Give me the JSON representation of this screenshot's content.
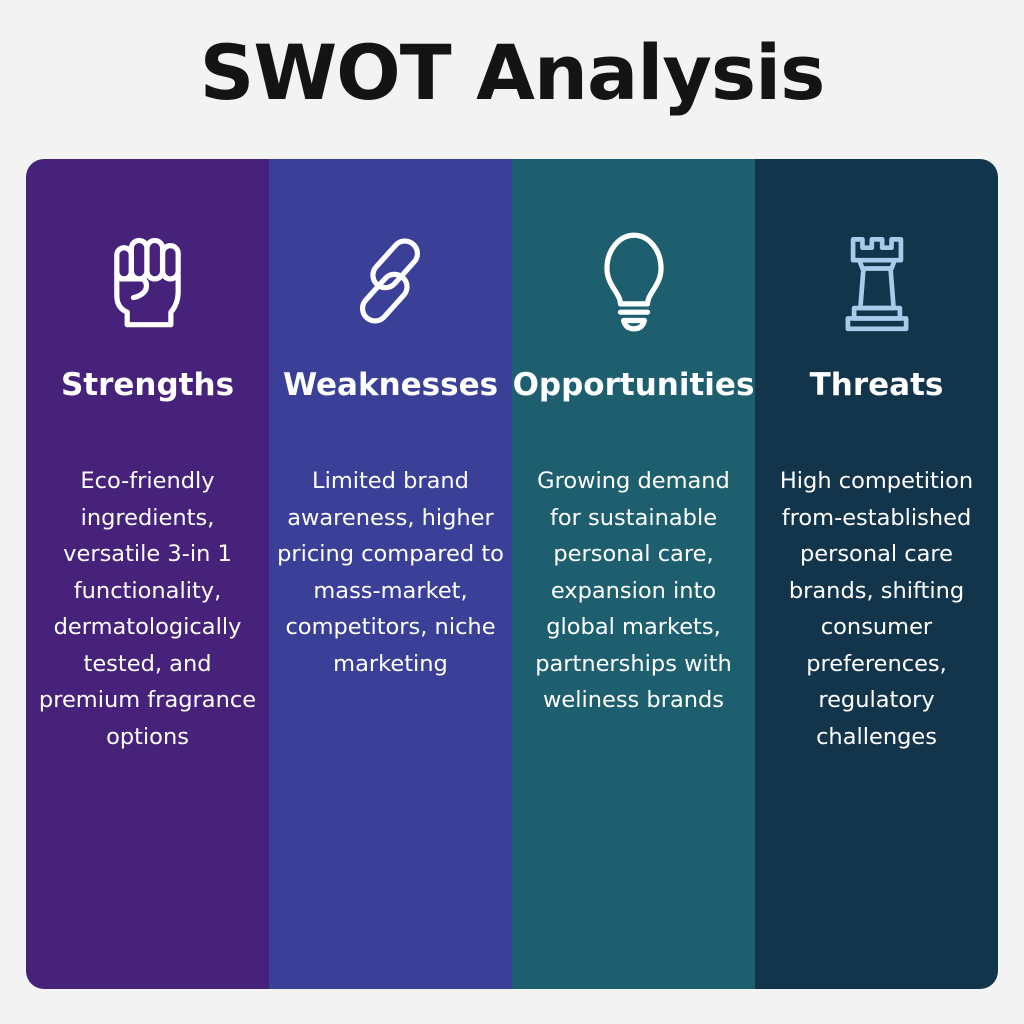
{
  "title": "SWOT Analysis",
  "quadrants": [
    {
      "heading": "Strengths",
      "icon": "fist-icon",
      "color": "#46227a",
      "text": "Eco-friendly ingredients, versatile 3-in 1 functionality, dermatologically tested, and premium fragrance options"
    },
    {
      "heading": "Weaknesses",
      "icon": "chain-link-icon",
      "color": "#3a3f97",
      "text": "Limited brand awareness, higher pricing compared to mass-market, competitors, niche marketing"
    },
    {
      "heading": "Opportunities",
      "icon": "lightbulb-icon",
      "color": "#1e5f6f",
      "text": "Growing demand for sustainable personal care, expansion into global markets, partnerships with weliness brands"
    },
    {
      "heading": "Threats",
      "icon": "rook-icon",
      "color": "#13354b",
      "text": "High competition from-established personal care brands, shifting consumer preferences, regulatory challenges"
    }
  ]
}
